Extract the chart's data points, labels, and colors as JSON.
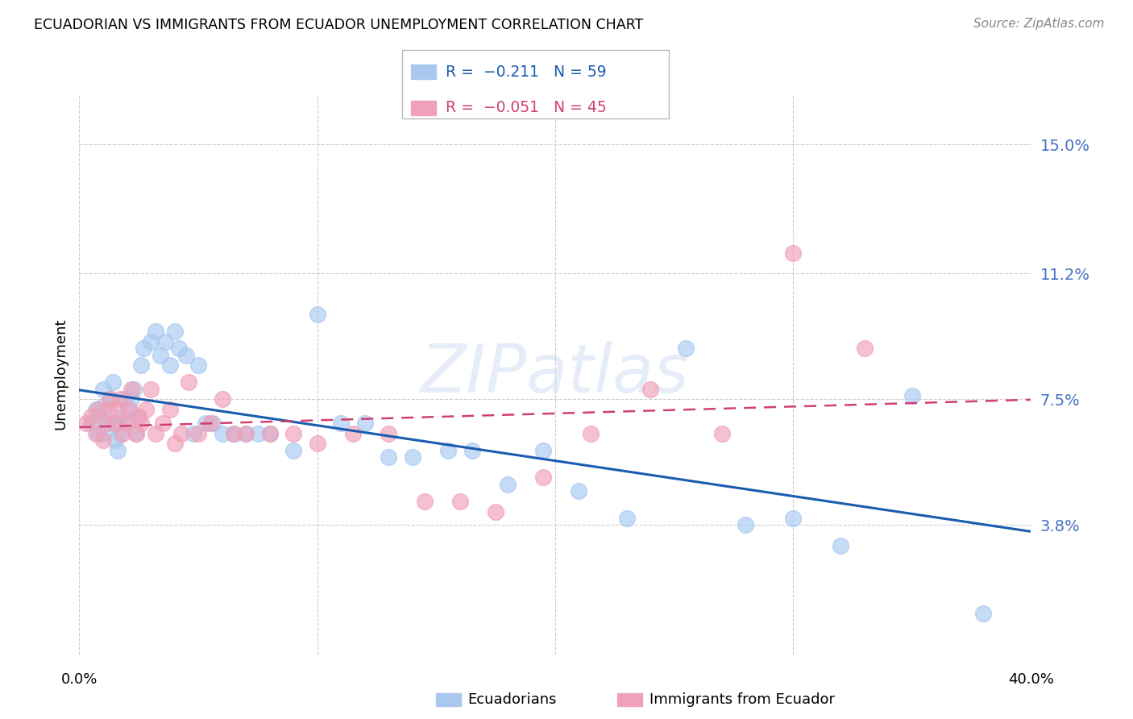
{
  "title": "ECUADORIAN VS IMMIGRANTS FROM ECUADOR UNEMPLOYMENT CORRELATION CHART",
  "source": "Source: ZipAtlas.com",
  "ylabel": "Unemployment",
  "yticks": [
    0.0,
    0.038,
    0.075,
    0.112,
    0.15
  ],
  "ytick_labels": [
    "",
    "3.8%",
    "7.5%",
    "11.2%",
    "15.0%"
  ],
  "xticks": [
    0.0,
    0.1,
    0.2,
    0.3,
    0.4
  ],
  "xlim": [
    0.0,
    0.4
  ],
  "ylim": [
    0.0,
    0.165
  ],
  "watermark": "ZIPatlas",
  "color_blue": "#a8c8f0",
  "color_pink": "#f0a0b8",
  "trendline_blue": "#1a5cb0",
  "trendline_pink": "#d04070",
  "ecuadorians_x": [
    0.005,
    0.007,
    0.008,
    0.009,
    0.01,
    0.01,
    0.01,
    0.012,
    0.013,
    0.014,
    0.015,
    0.015,
    0.016,
    0.017,
    0.018,
    0.019,
    0.02,
    0.021,
    0.022,
    0.023,
    0.024,
    0.025,
    0.026,
    0.027,
    0.03,
    0.032,
    0.034,
    0.036,
    0.038,
    0.04,
    0.042,
    0.045,
    0.048,
    0.05,
    0.053,
    0.056,
    0.06,
    0.065,
    0.07,
    0.075,
    0.08,
    0.09,
    0.1,
    0.11,
    0.12,
    0.13,
    0.14,
    0.155,
    0.165,
    0.18,
    0.195,
    0.21,
    0.23,
    0.255,
    0.28,
    0.3,
    0.32,
    0.35,
    0.38
  ],
  "ecuadorians_y": [
    0.068,
    0.072,
    0.065,
    0.07,
    0.065,
    0.073,
    0.078,
    0.068,
    0.075,
    0.08,
    0.063,
    0.068,
    0.06,
    0.065,
    0.07,
    0.075,
    0.068,
    0.072,
    0.075,
    0.078,
    0.065,
    0.07,
    0.085,
    0.09,
    0.092,
    0.095,
    0.088,
    0.092,
    0.085,
    0.095,
    0.09,
    0.088,
    0.065,
    0.085,
    0.068,
    0.068,
    0.065,
    0.065,
    0.065,
    0.065,
    0.065,
    0.06,
    0.1,
    0.068,
    0.068,
    0.058,
    0.058,
    0.06,
    0.06,
    0.05,
    0.06,
    0.048,
    0.04,
    0.09,
    0.038,
    0.04,
    0.032,
    0.076,
    0.012
  ],
  "immigrants_x": [
    0.003,
    0.005,
    0.007,
    0.008,
    0.01,
    0.011,
    0.012,
    0.013,
    0.015,
    0.016,
    0.017,
    0.018,
    0.02,
    0.021,
    0.022,
    0.024,
    0.025,
    0.026,
    0.028,
    0.03,
    0.032,
    0.035,
    0.038,
    0.04,
    0.043,
    0.046,
    0.05,
    0.055,
    0.06,
    0.065,
    0.07,
    0.08,
    0.09,
    0.1,
    0.115,
    0.13,
    0.145,
    0.16,
    0.175,
    0.195,
    0.215,
    0.24,
    0.27,
    0.3,
    0.33
  ],
  "immigrants_y": [
    0.068,
    0.07,
    0.065,
    0.072,
    0.063,
    0.068,
    0.072,
    0.075,
    0.068,
    0.072,
    0.075,
    0.065,
    0.068,
    0.072,
    0.078,
    0.065,
    0.07,
    0.068,
    0.072,
    0.078,
    0.065,
    0.068,
    0.072,
    0.062,
    0.065,
    0.08,
    0.065,
    0.068,
    0.075,
    0.065,
    0.065,
    0.065,
    0.065,
    0.062,
    0.065,
    0.065,
    0.045,
    0.045,
    0.042,
    0.052,
    0.065,
    0.078,
    0.065,
    0.118,
    0.09
  ]
}
